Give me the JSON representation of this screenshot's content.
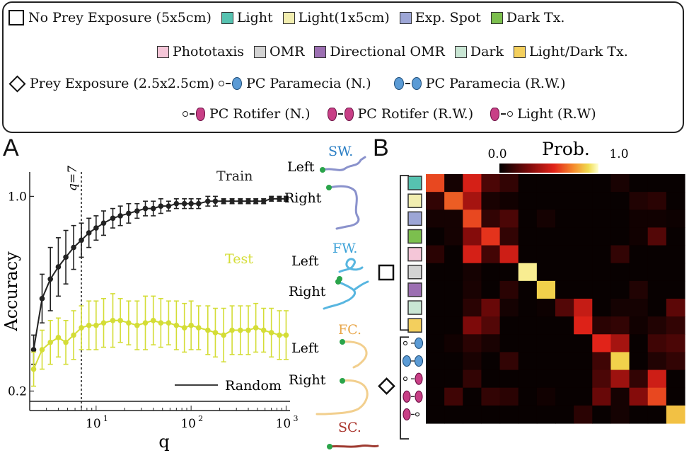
{
  "legend": {
    "no_prey_label": "No Prey Exposure (5x5cm)",
    "prey_label": "Prey Exposure (2.5x2.5cm)",
    "conditions": [
      {
        "label": "Light",
        "color": "#56c2b0"
      },
      {
        "label": "Light(1x5cm)",
        "color": "#f2eeb0"
      },
      {
        "label": "Exp. Spot",
        "color": "#9da6d6"
      },
      {
        "label": "Dark Tx.",
        "color": "#7cbf4e"
      },
      {
        "label": "Phototaxis",
        "color": "#f5c6d8"
      },
      {
        "label": "OMR",
        "color": "#d3d3d3"
      },
      {
        "label": "Directional OMR",
        "color": "#9c6fb2"
      },
      {
        "label": "Dark",
        "color": "#c9e6d4"
      },
      {
        "label": "Light/Dark Tx.",
        "color": "#f3cf5d"
      }
    ],
    "prey_conditions": [
      {
        "label": "PC Paramecia (N.)",
        "icon": "paramecium-icon",
        "pair": false
      },
      {
        "label": "PC Paramecia (R.W.)",
        "icon": "paramecium-icon",
        "pair": true
      },
      {
        "label": "PC Rotifer (N.)",
        "icon": "rotifer-icon",
        "pair": false
      },
      {
        "label": "PC Rotifer (R.W.)",
        "icon": "rotifer-icon",
        "pair": true
      },
      {
        "label": "Light (R.W)",
        "icon": "rotifer-icon",
        "pair": false
      }
    ]
  },
  "panel_labels": {
    "a": "A",
    "b": "B"
  },
  "chart_data": [
    {
      "type": "line",
      "xlabel": "q",
      "ylabel": "Accuracy",
      "xscale": "log",
      "xlim": [
        2,
        1100
      ],
      "ylim": [
        0.12,
        1.1
      ],
      "yticks": [
        0.2,
        1.0
      ],
      "ytick_labels": [
        "0.2",
        "1.0"
      ],
      "xticks": [
        10,
        100,
        1000
      ],
      "xtick_labels": [
        "10",
        "10",
        "10"
      ],
      "xtick_exponents": [
        "1",
        "2",
        "3"
      ],
      "annotation": "q=7",
      "vline_x": 7,
      "random_label": "Random",
      "random_y": 0.1,
      "series": [
        {
          "name": "Train",
          "color": "#222222",
          "x": [
            2.2,
            2.7,
            3.3,
            4,
            4.8,
            5.8,
            7,
            8.4,
            10,
            12,
            15,
            18,
            22,
            27,
            33,
            40,
            48,
            58,
            70,
            85,
            100,
            120,
            150,
            180,
            220,
            270,
            330,
            400,
            480,
            580,
            700,
            850,
            1000
          ],
          "y": [
            0.37,
            0.58,
            0.66,
            0.71,
            0.75,
            0.79,
            0.82,
            0.85,
            0.87,
            0.89,
            0.91,
            0.92,
            0.93,
            0.94,
            0.95,
            0.95,
            0.96,
            0.96,
            0.97,
            0.97,
            0.97,
            0.97,
            0.98,
            0.98,
            0.98,
            0.98,
            0.98,
            0.98,
            0.98,
            0.98,
            0.99,
            0.99,
            0.99
          ],
          "err": [
            0.06,
            0.1,
            0.13,
            0.12,
            0.11,
            0.09,
            0.07,
            0.06,
            0.05,
            0.05,
            0.04,
            0.04,
            0.04,
            0.03,
            0.03,
            0.03,
            0.03,
            0.02,
            0.02,
            0.02,
            0.02,
            0.02,
            0.02,
            0.02,
            0.01,
            0.01,
            0.01,
            0.01,
            0.01,
            0.01,
            0.01,
            0.01,
            0.01
          ]
        },
        {
          "name": "Test",
          "color": "#d4dd36",
          "x": [
            2.2,
            2.7,
            3.3,
            4,
            4.8,
            5.8,
            7,
            8.4,
            10,
            12,
            15,
            18,
            22,
            27,
            33,
            40,
            48,
            58,
            70,
            85,
            100,
            120,
            150,
            180,
            220,
            270,
            330,
            400,
            480,
            580,
            700,
            850,
            1000
          ],
          "y": [
            0.29,
            0.37,
            0.4,
            0.42,
            0.4,
            0.43,
            0.46,
            0.47,
            0.47,
            0.48,
            0.49,
            0.49,
            0.48,
            0.47,
            0.48,
            0.49,
            0.48,
            0.48,
            0.47,
            0.46,
            0.47,
            0.46,
            0.45,
            0.44,
            0.43,
            0.45,
            0.45,
            0.45,
            0.46,
            0.45,
            0.44,
            0.43,
            0.43
          ],
          "err": [
            0.07,
            0.08,
            0.09,
            0.08,
            0.09,
            0.1,
            0.09,
            0.1,
            0.1,
            0.1,
            0.11,
            0.09,
            0.09,
            0.1,
            0.11,
            0.1,
            0.1,
            0.09,
            0.1,
            0.1,
            0.1,
            0.09,
            0.1,
            0.1,
            0.11,
            0.1,
            0.1,
            0.1,
            0.1,
            0.09,
            0.1,
            0.1,
            0.1
          ]
        }
      ]
    },
    {
      "type": "heatmap",
      "colorbar_label": "Prob.",
      "colorbar_min": "0.0",
      "colorbar_max": "1.0",
      "rows": 14,
      "cols": 14,
      "values": [
        [
          0.62,
          0.05,
          0.52,
          0.18,
          0.12,
          0.02,
          0.02,
          0.02,
          0.02,
          0.02,
          0.06,
          0.02,
          0.02,
          0.02
        ],
        [
          0.12,
          0.66,
          0.4,
          0.06,
          0.04,
          0.02,
          0.02,
          0.02,
          0.02,
          0.02,
          0.02,
          0.08,
          0.1,
          0.02
        ],
        [
          0.05,
          0.05,
          0.62,
          0.12,
          0.18,
          0.02,
          0.05,
          0.02,
          0.02,
          0.02,
          0.02,
          0.04,
          0.04,
          0.03
        ],
        [
          0.02,
          0.05,
          0.32,
          0.58,
          0.12,
          0.02,
          0.02,
          0.02,
          0.02,
          0.02,
          0.02,
          0.04,
          0.2,
          0.02
        ],
        [
          0.1,
          0.02,
          0.52,
          0.16,
          0.5,
          0.02,
          0.02,
          0.02,
          0.02,
          0.02,
          0.12,
          0.02,
          0.02,
          0.02
        ],
        [
          0.02,
          0.02,
          0.05,
          0.02,
          0.02,
          0.95,
          0.02,
          0.02,
          0.02,
          0.02,
          0.02,
          0.02,
          0.02,
          0.02
        ],
        [
          0.02,
          0.02,
          0.06,
          0.02,
          0.1,
          0.02,
          0.88,
          0.02,
          0.02,
          0.02,
          0.02,
          0.08,
          0.02,
          0.02
        ],
        [
          0.02,
          0.02,
          0.1,
          0.25,
          0.05,
          0.02,
          0.03,
          0.2,
          0.48,
          0.02,
          0.05,
          0.05,
          0.02,
          0.22
        ],
        [
          0.02,
          0.02,
          0.3,
          0.2,
          0.02,
          0.02,
          0.02,
          0.02,
          0.54,
          0.1,
          0.12,
          0.04,
          0.08,
          0.12
        ],
        [
          0.02,
          0.04,
          0.1,
          0.06,
          0.02,
          0.02,
          0.02,
          0.02,
          0.02,
          0.55,
          0.4,
          0.02,
          0.15,
          0.18
        ],
        [
          0.02,
          0.02,
          0.06,
          0.02,
          0.12,
          0.02,
          0.02,
          0.02,
          0.02,
          0.15,
          0.88,
          0.02,
          0.08,
          0.12
        ],
        [
          0.02,
          0.02,
          0.12,
          0.02,
          0.02,
          0.02,
          0.02,
          0.02,
          0.02,
          0.18,
          0.38,
          0.12,
          0.5,
          0.02
        ],
        [
          0.02,
          0.15,
          0.02,
          0.12,
          0.1,
          0.02,
          0.04,
          0.02,
          0.02,
          0.25,
          0.05,
          0.32,
          0.62,
          0.02
        ],
        [
          0.02,
          0.02,
          0.02,
          0.02,
          0.02,
          0.02,
          0.02,
          0.02,
          0.1,
          0.02,
          0.05,
          0.02,
          0.02,
          0.85
        ]
      ]
    }
  ],
  "trajectories": [
    {
      "tag": "SW.",
      "tag_color": "#2a7ec4",
      "color": "#8a92cc"
    },
    {
      "tag": "FW.",
      "tag_color": "#3fa3d8",
      "color": "#58b6e0"
    },
    {
      "tag": "FC.",
      "tag_color": "#e8a74b",
      "color": "#f2cf8e"
    },
    {
      "tag": "SC.",
      "tag_color": "#a8322a",
      "color": "#9e3a30"
    }
  ],
  "traj_labels": {
    "left": "Left",
    "right": "Right"
  }
}
